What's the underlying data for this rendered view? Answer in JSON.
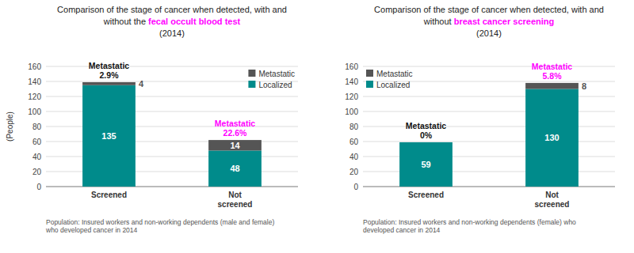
{
  "chart_data": [
    {
      "type": "bar",
      "stacked": true,
      "grid": true,
      "data_labels": true,
      "legend": "upper right",
      "title": [
        [
          {
            "text": "Comparison of the stage of cancer when detected, with and"
          }
        ],
        [
          {
            "text": "without the "
          },
          {
            "text": "fecal occult blood test",
            "color": "#ff00ff"
          }
        ],
        [
          {
            "text": "(2014)"
          }
        ]
      ],
      "ylabel": "(People)",
      "categories": [
        "Screened",
        "Not\nscreened"
      ],
      "series": [
        {
          "name": "Localized",
          "color": "#008B8B",
          "values": [
            135,
            48
          ]
        },
        {
          "name": "Metastatic",
          "color": "#555555",
          "values": [
            4,
            14
          ]
        }
      ],
      "ylim": [
        0,
        160
      ],
      "yticks": [
        0,
        20,
        40,
        60,
        80,
        100,
        120,
        140,
        160
      ],
      "annotations": [
        {
          "text": "Metastatic\n2.9%",
          "x": "Screened",
          "color": "#111111"
        },
        {
          "text": "Metastatic\n22.6%",
          "x": "Not\nscreened",
          "color": "#ff00ff"
        }
      ],
      "footnote": "Population: Insured workers and non-working dependents (male and female)\nwho developed cancer in 2014"
    },
    {
      "type": "bar",
      "stacked": true,
      "grid": true,
      "data_labels": true,
      "legend": "upper left",
      "title": [
        [
          {
            "text": "Comparison of the stage of cancer when detected, with and"
          }
        ],
        [
          {
            "text": "without "
          },
          {
            "text": "breast cancer screening",
            "color": "#ff00ff"
          }
        ],
        [
          {
            "text": "(2014)"
          }
        ]
      ],
      "categories": [
        "Screened",
        "Not\nscreened"
      ],
      "series": [
        {
          "name": "Localized",
          "color": "#008B8B",
          "values": [
            59,
            130
          ]
        },
        {
          "name": "Metastatic",
          "color": "#555555",
          "values": [
            0,
            8
          ]
        }
      ],
      "ylim": [
        0,
        160
      ],
      "yticks": [
        0,
        20,
        40,
        60,
        80,
        100,
        120,
        140,
        160
      ],
      "annotations": [
        {
          "text": "Metastatic\n0%",
          "x": "Screened",
          "color": "#111111"
        },
        {
          "text": "Metastatic\n5.8%",
          "x": "Not\nscreened",
          "color": "#ff00ff"
        }
      ],
      "footnote": "Population: Insured workers and non-working dependents (female) who\ndeveloped cancer in 2014"
    }
  ]
}
